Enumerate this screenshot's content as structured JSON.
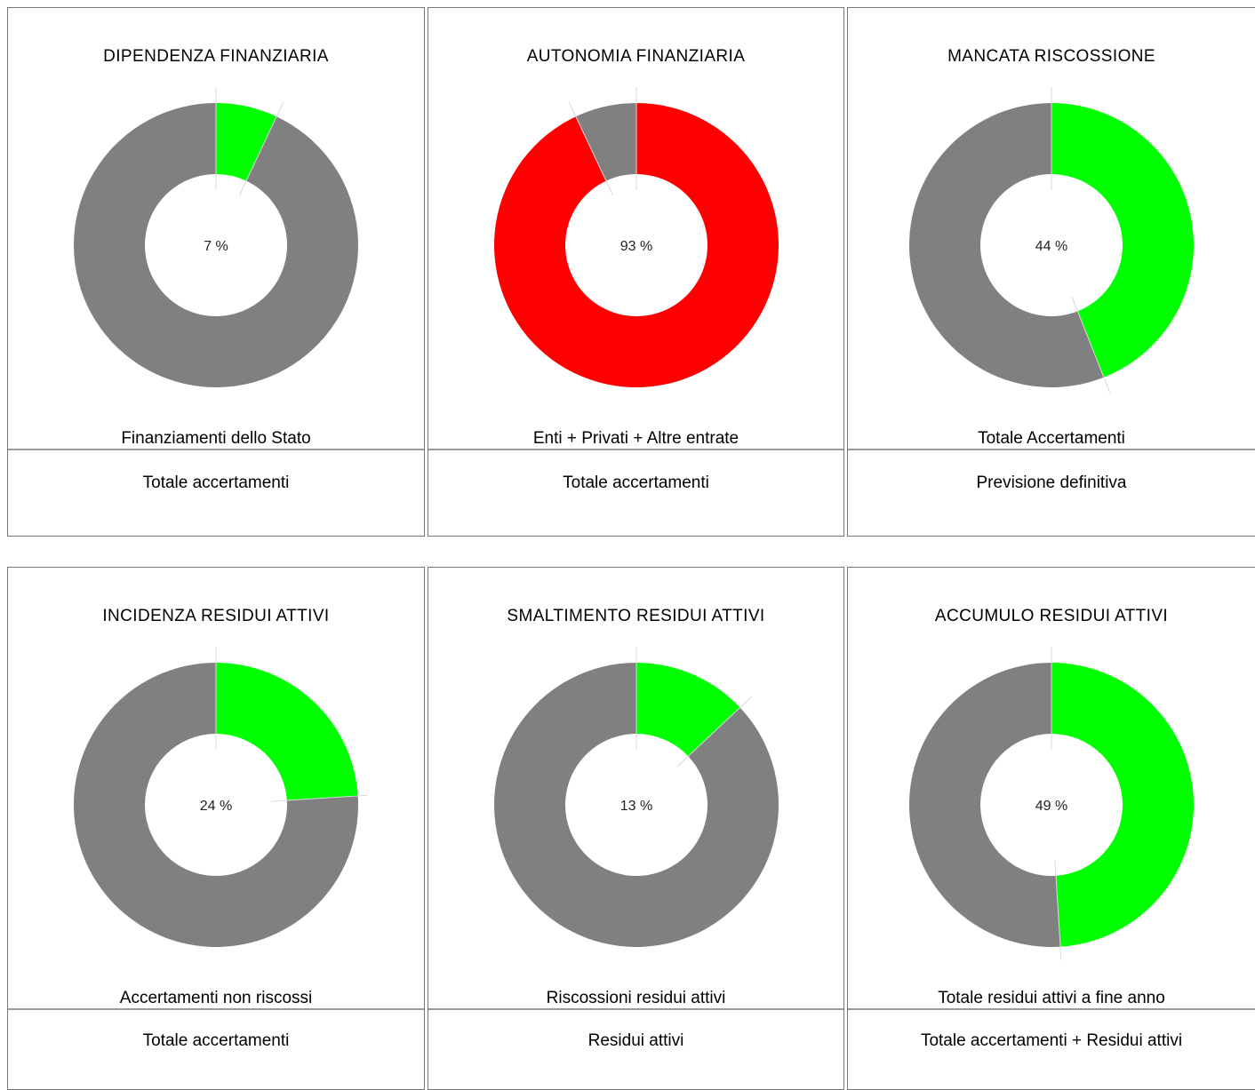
{
  "colors": {
    "primary_green": "#00ff00",
    "primary_red": "#ff0000",
    "remainder": "#808080",
    "hole": "#ffffff"
  },
  "chart_data": [
    {
      "type": "pie",
      "title": "DIPENDENZA FINANZIARIA",
      "values": [
        7,
        93
      ],
      "colors": [
        "#00ff00",
        "#808080"
      ],
      "center_label": "7 %",
      "numerator_label": "Finanziamenti dello Stato",
      "denominator_label": "Totale accertamenti"
    },
    {
      "type": "pie",
      "title": "AUTONOMIA FINANZIARIA",
      "values": [
        93,
        7
      ],
      "colors": [
        "#ff0000",
        "#808080"
      ],
      "center_label": "93 %",
      "numerator_label": "Enti + Privati + Altre entrate",
      "denominator_label": "Totale accertamenti"
    },
    {
      "type": "pie",
      "title": "MANCATA RISCOSSIONE",
      "values": [
        44,
        56
      ],
      "colors": [
        "#00ff00",
        "#808080"
      ],
      "center_label": "44 %",
      "numerator_label": "Totale Accertamenti",
      "denominator_label": "Previsione definitiva"
    },
    {
      "type": "pie",
      "title": "INCIDENZA RESIDUI ATTIVI",
      "values": [
        24,
        76
      ],
      "colors": [
        "#00ff00",
        "#808080"
      ],
      "center_label": "24 %",
      "numerator_label": "Accertamenti non riscossi",
      "denominator_label": "Totale accertamenti"
    },
    {
      "type": "pie",
      "title": "SMALTIMENTO RESIDUI ATTIVI",
      "values": [
        13,
        87
      ],
      "colors": [
        "#00ff00",
        "#808080"
      ],
      "center_label": "13 %",
      "numerator_label": "Riscossioni residui attivi",
      "denominator_label": "Residui attivi"
    },
    {
      "type": "pie",
      "title": "ACCUMULO RESIDUI ATTIVI",
      "values": [
        49,
        51
      ],
      "colors": [
        "#00ff00",
        "#808080"
      ],
      "center_label": "49 %",
      "numerator_label": "Totale residui attivi a fine anno",
      "denominator_label": "Totale accertamenti + Residui attivi"
    }
  ]
}
